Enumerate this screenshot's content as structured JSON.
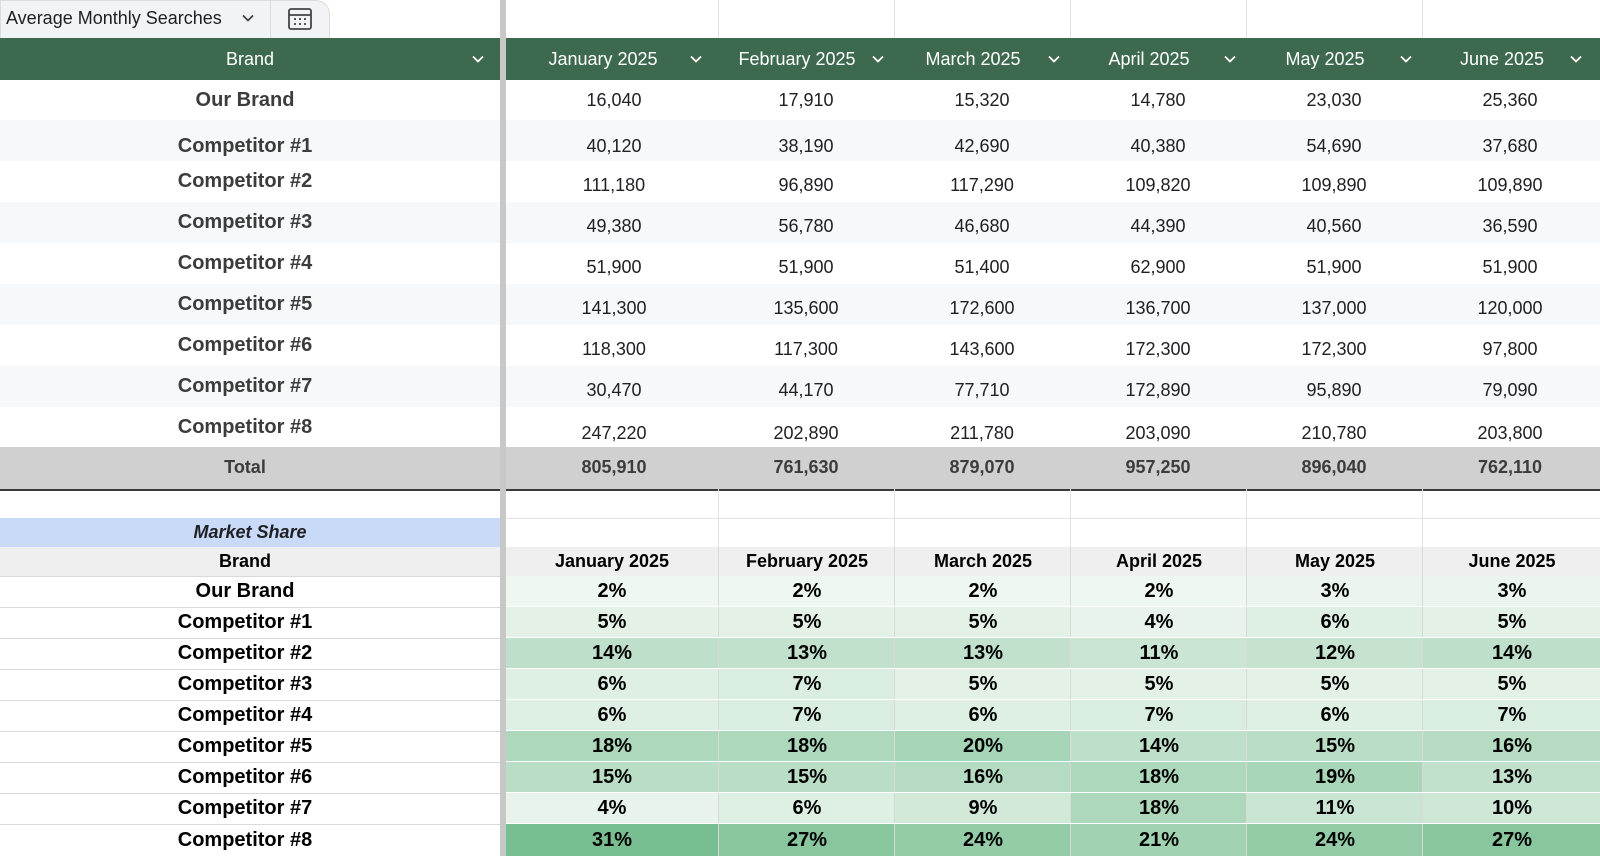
{
  "table_name": "Average Monthly Searches",
  "icons": {
    "dropdown": "chevron-down-icon",
    "table_view": "table-calendar-icon"
  },
  "colors": {
    "header_bg": "#3d6a4e",
    "total_bg": "#d0d0d0",
    "market_share_title_bg": "#c9daf8",
    "stripe": "#f7f8f9"
  },
  "header": {
    "brand": "Brand",
    "months": [
      "January 2025",
      "February 2025",
      "March 2025",
      "April 2025",
      "May 2025",
      "June 2025"
    ]
  },
  "searches": [
    {
      "brand": "Our Brand",
      "values": [
        "16,040",
        "17,910",
        "15,320",
        "14,780",
        "23,030",
        "25,360"
      ]
    },
    {
      "brand": "Competitor #1",
      "values": [
        "40,120",
        "38,190",
        "42,690",
        "40,380",
        "54,690",
        "37,680"
      ]
    },
    {
      "brand": "Competitor #2",
      "values": [
        "111,180",
        "96,890",
        "117,290",
        "109,820",
        "109,890",
        "109,890"
      ]
    },
    {
      "brand": "Competitor #3",
      "values": [
        "49,380",
        "56,780",
        "46,680",
        "44,390",
        "40,560",
        "36,590"
      ]
    },
    {
      "brand": "Competitor #4",
      "values": [
        "51,900",
        "51,900",
        "51,400",
        "62,900",
        "51,900",
        "51,900"
      ]
    },
    {
      "brand": "Competitor #5",
      "values": [
        "141,300",
        "135,600",
        "172,600",
        "136,700",
        "137,000",
        "120,000"
      ]
    },
    {
      "brand": "Competitor #6",
      "values": [
        "118,300",
        "117,300",
        "143,600",
        "172,300",
        "172,300",
        "97,800"
      ]
    },
    {
      "brand": "Competitor #7",
      "values": [
        "30,470",
        "44,170",
        "77,710",
        "172,890",
        "95,890",
        "79,090"
      ]
    },
    {
      "brand": "Competitor #8",
      "values": [
        "247,220",
        "202,890",
        "211,780",
        "203,090",
        "210,780",
        "203,800"
      ]
    }
  ],
  "total": {
    "label": "Total",
    "values": [
      "805,910",
      "761,630",
      "879,070",
      "957,250",
      "896,040",
      "762,110"
    ]
  },
  "market_share": {
    "title": "Market Share",
    "brand_header": "Brand",
    "months": [
      "January 2025",
      "February 2025",
      "March 2025",
      "April 2025",
      "May 2025",
      "June 2025"
    ],
    "rows": [
      {
        "brand": "Our Brand",
        "values": [
          "2%",
          "2%",
          "2%",
          "2%",
          "3%",
          "3%"
        ]
      },
      {
        "brand": "Competitor #1",
        "values": [
          "5%",
          "5%",
          "5%",
          "4%",
          "6%",
          "5%"
        ]
      },
      {
        "brand": "Competitor #2",
        "values": [
          "14%",
          "13%",
          "13%",
          "11%",
          "12%",
          "14%"
        ]
      },
      {
        "brand": "Competitor #3",
        "values": [
          "6%",
          "7%",
          "5%",
          "5%",
          "5%",
          "5%"
        ]
      },
      {
        "brand": "Competitor #4",
        "values": [
          "6%",
          "7%",
          "6%",
          "7%",
          "6%",
          "7%"
        ]
      },
      {
        "brand": "Competitor #5",
        "values": [
          "18%",
          "18%",
          "20%",
          "14%",
          "15%",
          "16%"
        ]
      },
      {
        "brand": "Competitor #6",
        "values": [
          "15%",
          "15%",
          "16%",
          "18%",
          "19%",
          "13%"
        ]
      },
      {
        "brand": "Competitor #7",
        "values": [
          "4%",
          "6%",
          "9%",
          "18%",
          "11%",
          "10%"
        ]
      },
      {
        "brand": "Competitor #8",
        "values": [
          "31%",
          "27%",
          "24%",
          "21%",
          "24%",
          "27%"
        ]
      }
    ]
  }
}
